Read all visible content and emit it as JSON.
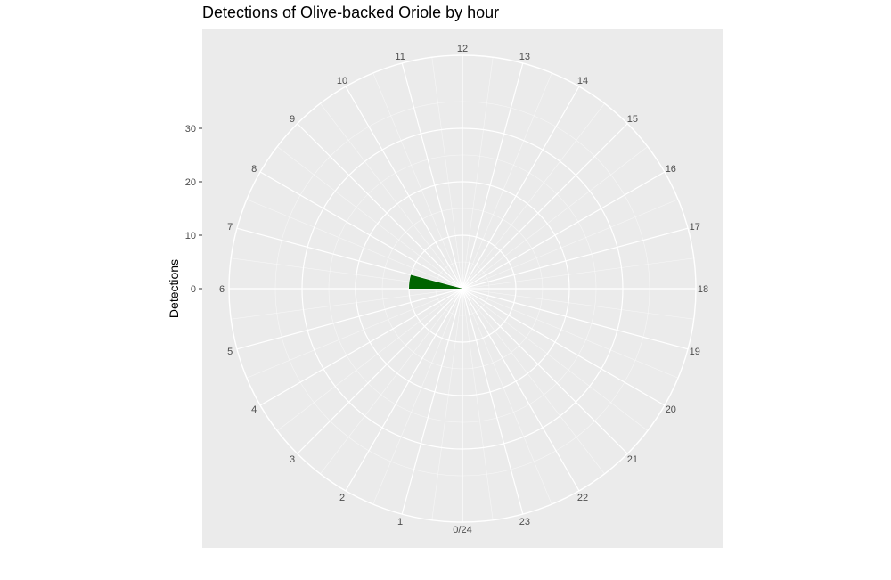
{
  "chart_data": {
    "type": "bar",
    "polar": true,
    "title": "Detections of Olive-backed Oriole by hour",
    "xlabel": "",
    "ylabel": "Detections",
    "categories": [
      "0/24",
      "1",
      "2",
      "3",
      "4",
      "5",
      "6",
      "7",
      "8",
      "9",
      "10",
      "11",
      "12",
      "13",
      "14",
      "15",
      "16",
      "17",
      "18",
      "19",
      "20",
      "21",
      "22",
      "23"
    ],
    "values": [
      0,
      0,
      0,
      0,
      0,
      0,
      10,
      0,
      0,
      0,
      0,
      0,
      0,
      0,
      0,
      0,
      0,
      0,
      0,
      0,
      0,
      0,
      0,
      0
    ],
    "y_ticks": [
      "0",
      "10",
      "20",
      "30"
    ],
    "ylim": [
      0,
      40
    ],
    "bar_color": "#006400",
    "panel_color": "#ebebeb",
    "grid_color": "#ffffff",
    "grid": true
  }
}
